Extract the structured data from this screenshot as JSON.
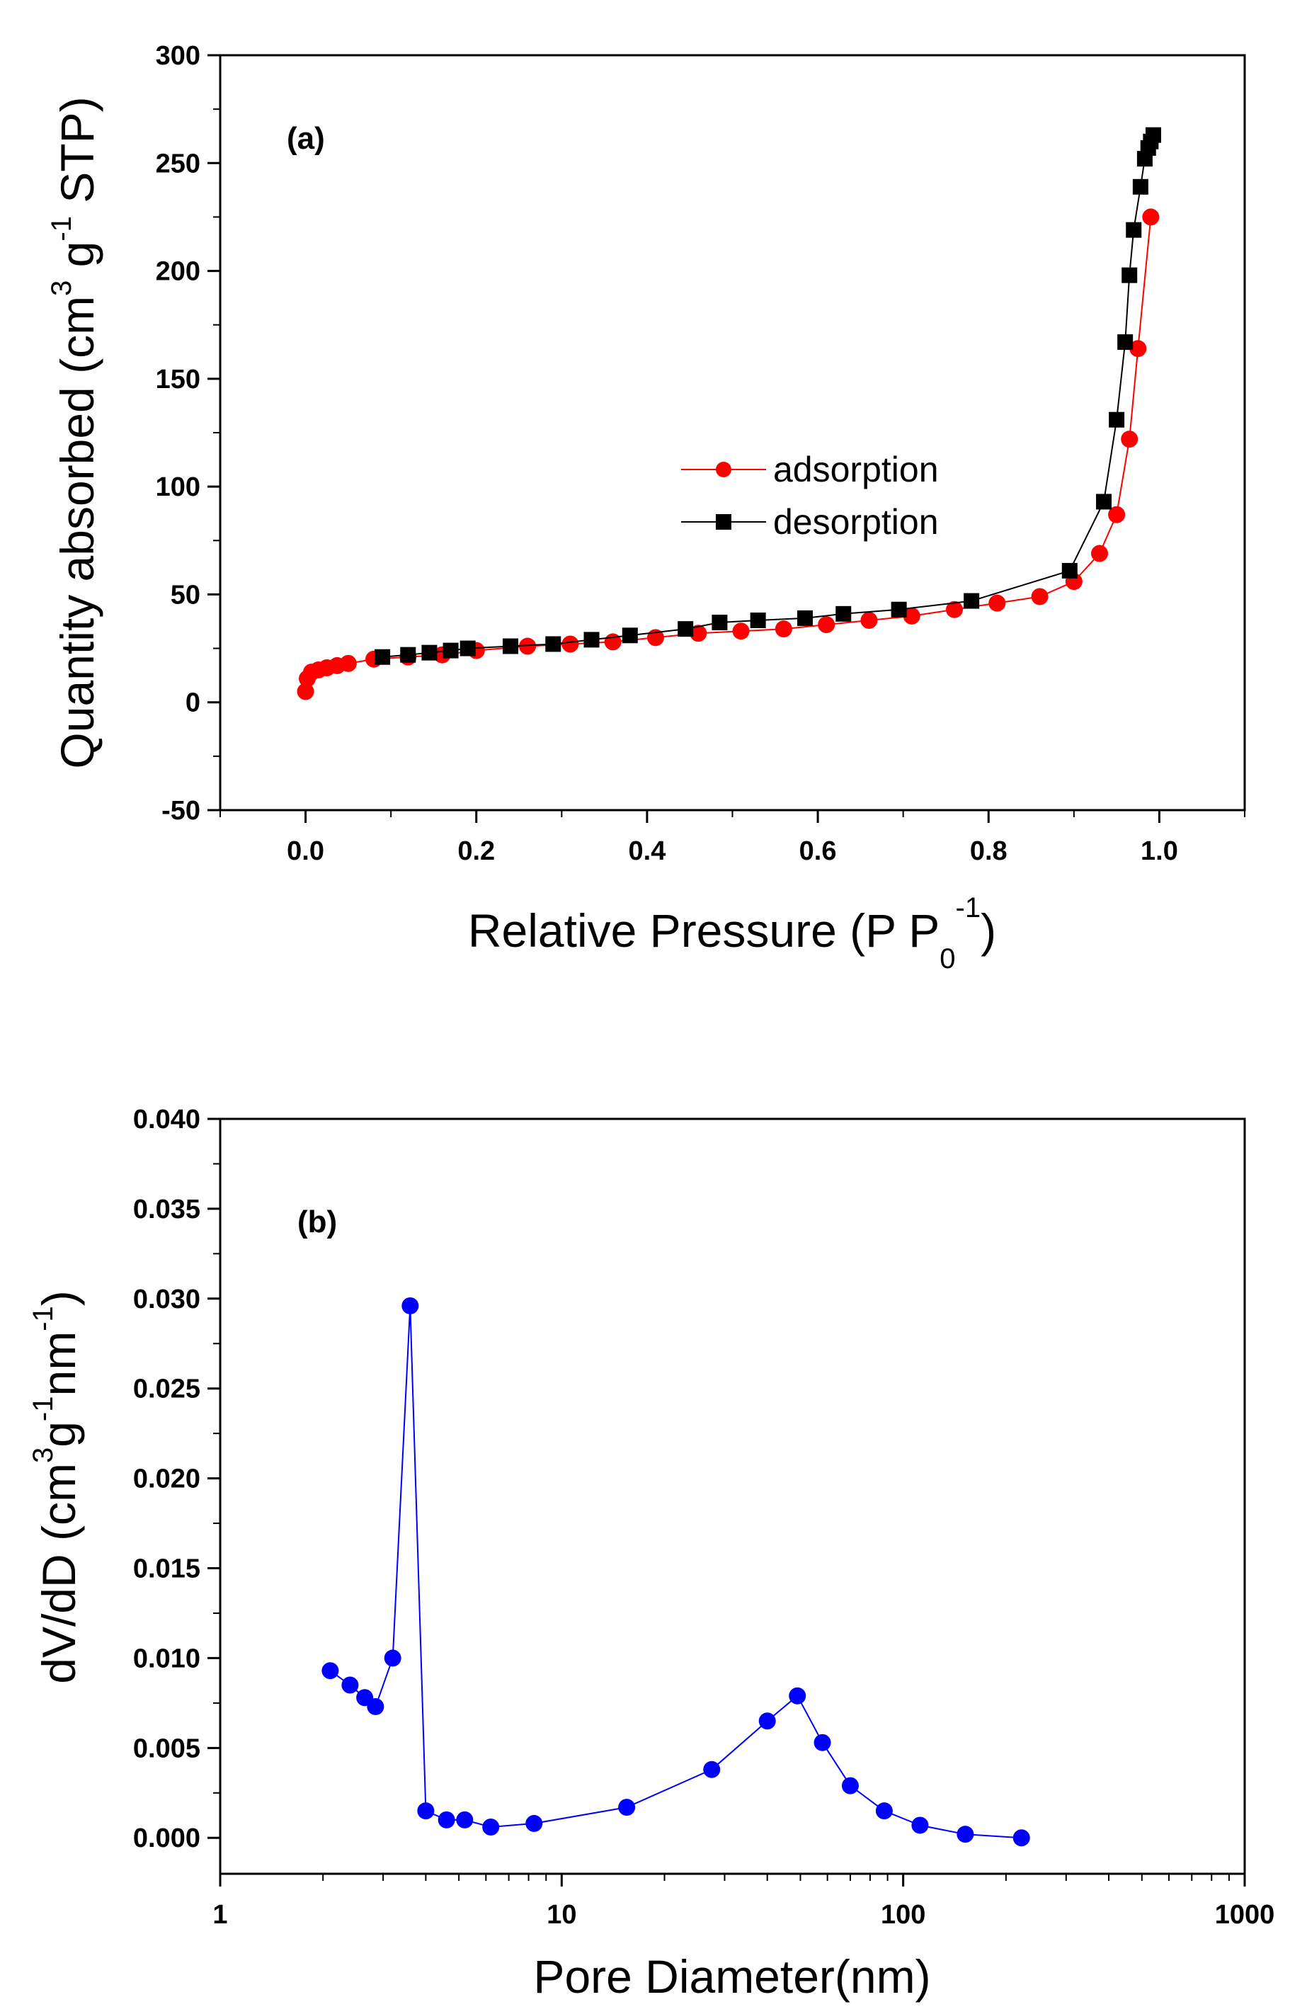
{
  "chart_data": [
    {
      "type": "scatter",
      "panel_label": "(a)",
      "xlabel": {
        "main": "Relative Pressure (P P",
        "sub": "0",
        "sup": "-1",
        "close": ")"
      },
      "ylabel": {
        "main": "Quantity absorbed (cm",
        "sup1": "3",
        "mid": " g",
        "sup2": "-1",
        "end": " STP)"
      },
      "xlim": [
        -0.1,
        1.1
      ],
      "ylim": [
        -50,
        300
      ],
      "xticks": [
        0.0,
        0.2,
        0.4,
        0.6,
        0.8,
        1.0
      ],
      "xtick_labels": [
        "0.0",
        "0.2",
        "0.4",
        "0.6",
        "0.8",
        "1.0"
      ],
      "yticks": [
        -50,
        0,
        50,
        100,
        150,
        200,
        250,
        300
      ],
      "ytick_labels": [
        "-50",
        "0",
        "50",
        "100",
        "150",
        "200",
        "250",
        "300"
      ],
      "x_scale": "linear",
      "grid": false,
      "legend_position": "center",
      "series": [
        {
          "name": "adsorption",
          "marker": "circle",
          "color": "#ff0000",
          "line_color": "#ff0000",
          "x": [
            0.0,
            0.002,
            0.007,
            0.015,
            0.025,
            0.037,
            0.05,
            0.08,
            0.12,
            0.16,
            0.2,
            0.26,
            0.31,
            0.36,
            0.41,
            0.46,
            0.51,
            0.56,
            0.61,
            0.66,
            0.71,
            0.76,
            0.81,
            0.86,
            0.9,
            0.93,
            0.95,
            0.965,
            0.975,
            0.99
          ],
          "y": [
            5,
            11,
            14,
            15,
            16,
            17,
            18,
            20,
            21,
            22,
            24,
            26,
            27,
            28,
            30,
            32,
            33,
            34,
            36,
            38,
            40,
            43,
            46,
            49,
            56,
            69,
            87,
            122,
            164,
            225
          ]
        },
        {
          "name": "desorption",
          "marker": "square",
          "color": "#000000",
          "line_color": "#000000",
          "x": [
            0.09,
            0.12,
            0.145,
            0.17,
            0.19,
            0.24,
            0.29,
            0.335,
            0.38,
            0.445,
            0.485,
            0.53,
            0.585,
            0.63,
            0.695,
            0.78,
            0.895,
            0.935,
            0.95,
            0.96,
            0.965,
            0.97,
            0.978,
            0.983,
            0.987,
            0.99,
            0.993
          ],
          "y": [
            21,
            22,
            23,
            24,
            25,
            26,
            27,
            29,
            31,
            34,
            37,
            38,
            39,
            41,
            43,
            47,
            61,
            93,
            131,
            167,
            198,
            219,
            239,
            252,
            257,
            260,
            263
          ]
        }
      ]
    },
    {
      "type": "line",
      "panel_label": "(b)",
      "xlabel": {
        "main": "Pore Diameter(nm)"
      },
      "ylabel": {
        "main": "dV/dD (cm",
        "sup1": "3",
        "mid": "g",
        "sup2": "-1",
        "mid2": "nm",
        "sup3": "-1",
        "end": ")"
      },
      "x_scale": "log",
      "xlim": [
        1,
        1000
      ],
      "ylim": [
        -0.002,
        0.04
      ],
      "xticks": [
        1,
        10,
        100,
        1000
      ],
      "xtick_labels": [
        "1",
        "10",
        "100",
        "1000"
      ],
      "yticks": [
        0.0,
        0.005,
        0.01,
        0.015,
        0.02,
        0.025,
        0.03,
        0.035,
        0.04
      ],
      "ytick_labels": [
        "0.000",
        "0.005",
        "0.010",
        "0.015",
        "0.020",
        "0.025",
        "0.030",
        "0.035",
        "0.040"
      ],
      "grid": false,
      "series": [
        {
          "marker": "circle",
          "color": "#0000ff",
          "line_color": "#0000ff",
          "x": [
            2.1,
            2.4,
            2.65,
            2.85,
            3.2,
            3.6,
            4.0,
            4.6,
            5.2,
            6.2,
            8.3,
            15.5,
            27.5,
            40,
            49,
            58,
            70,
            88,
            112,
            152,
            222
          ],
          "y": [
            0.0093,
            0.0085,
            0.0078,
            0.0073,
            0.01,
            0.0296,
            0.0015,
            0.001,
            0.001,
            0.0006,
            0.0008,
            0.0017,
            0.0038,
            0.0065,
            0.0079,
            0.0053,
            0.0029,
            0.0015,
            0.0007,
            0.0002,
            0.0
          ]
        }
      ]
    }
  ]
}
